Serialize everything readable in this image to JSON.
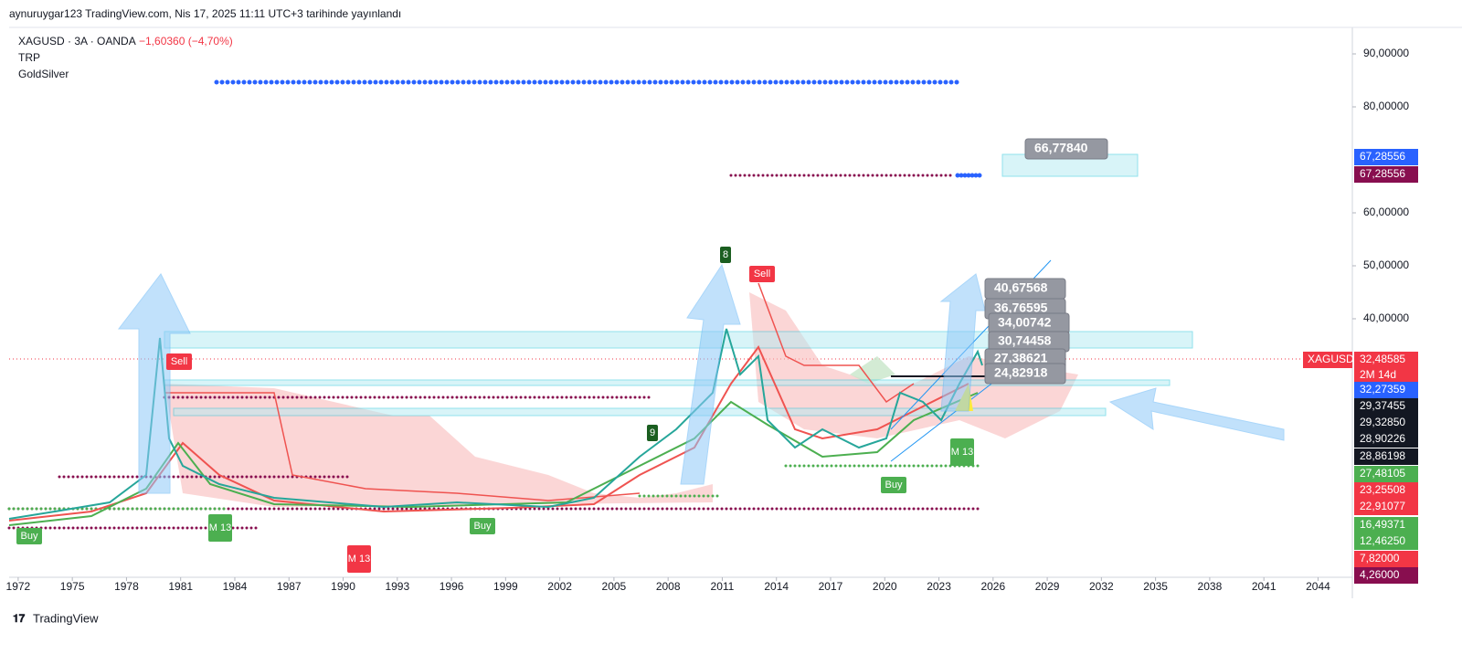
{
  "header": {
    "title": "aynuruygar123 TradingView.com, Nis 17, 2025 11:11 UTC+3 tarihinde yayınlandı"
  },
  "legend": {
    "symbol": "XAGUSD · 3A · OANDA",
    "change": "−1,60360 (−4,70%)",
    "indicators": [
      "TRP",
      "GoldSilver"
    ]
  },
  "price_axis": {
    "ylim": [
      -8.8,
      95
    ],
    "ticks": [
      {
        "value": 90,
        "label": "90,00000"
      },
      {
        "value": 80,
        "label": "80,00000"
      },
      {
        "value": 60,
        "label": "60,00000"
      },
      {
        "value": 50,
        "label": "50,00000"
      },
      {
        "value": 40,
        "label": "40,00000"
      }
    ]
  },
  "time_axis": {
    "xlim": [
      1971.5,
      2045.9
    ],
    "ticks": [
      1972,
      1975,
      1978,
      1981,
      1984,
      1987,
      1990,
      1993,
      1996,
      1999,
      2002,
      2005,
      2008,
      2011,
      2014,
      2017,
      2020,
      2023,
      2026,
      2029,
      2032,
      2035,
      2038,
      2041,
      2044
    ]
  },
  "price_tags": [
    {
      "label": "67,28556",
      "color": "#2962ff"
    },
    {
      "label": "67,28556",
      "color": "#880e4f"
    },
    {
      "name": "XAGUSD",
      "label": "32,48585",
      "sub": "2M 14d",
      "color": "#f23645"
    },
    {
      "label": "32,27359",
      "color": "#2962ff"
    },
    {
      "label": "29,37455",
      "color": "#131722"
    },
    {
      "label": "29,32850",
      "color": "#131722"
    },
    {
      "label": "28,90226",
      "color": "#131722"
    },
    {
      "label": "28,86198",
      "color": "#131722"
    },
    {
      "label": "27,48105",
      "color": "#4caf50"
    },
    {
      "label": "23,25508",
      "color": "#f23645"
    },
    {
      "label": "22,91077",
      "color": "#f23645"
    },
    {
      "label": "16,49371",
      "color": "#4caf50"
    },
    {
      "label": "12,46250",
      "color": "#4caf50"
    },
    {
      "label": "7,82000",
      "color": "#f23645"
    },
    {
      "label": "4,26000",
      "color": "#880e4f"
    }
  ],
  "callouts": [
    "66,77840",
    "40,67568",
    "36,76595",
    "34,00742",
    "30,74458",
    "27,38621",
    "24,82918"
  ],
  "signals": [
    "Buy",
    "Buy",
    "Buy",
    "Sell",
    "Sell",
    "M 13",
    "M 13",
    "M 13",
    "8",
    "9"
  ],
  "footer": {
    "brand": "TradingView"
  }
}
